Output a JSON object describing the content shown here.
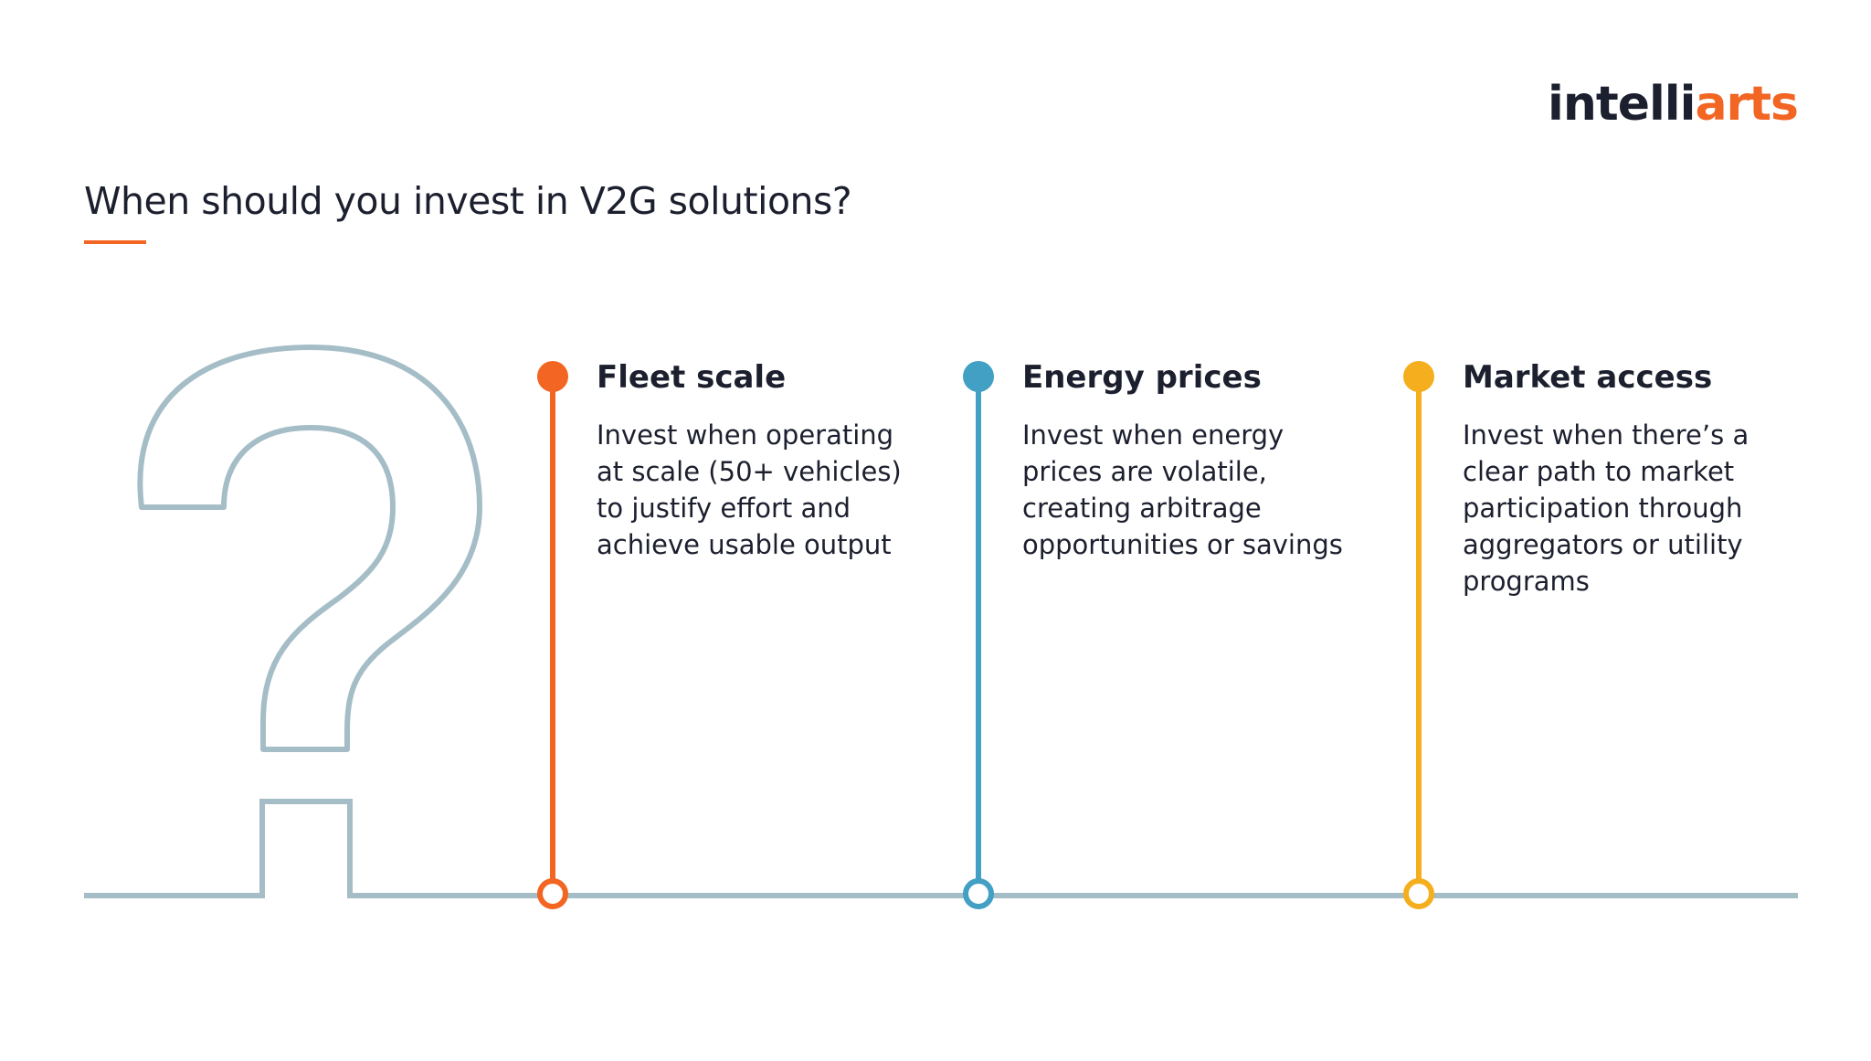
{
  "logo": {
    "part1": "intelli",
    "part2": "arts"
  },
  "title": "When should you invest in V2G solutions?",
  "colors": {
    "accent": "#f26522",
    "blue": "#42a0c4",
    "yellow": "#f5ae1e",
    "baseline": "#a5bdc6",
    "text": "#1c1f2e"
  },
  "items": [
    {
      "heading": "Fleet scale",
      "lines": [
        "Invest when operating",
        "at scale (50+ vehicles)",
        "to justify effort and",
        "achieve usable output"
      ],
      "color": "#f26522"
    },
    {
      "heading": "Energy prices",
      "lines": [
        "Invest when energy",
        "prices are volatile,",
        "creating arbitrage",
        "opportunities or savings"
      ],
      "color": "#42a0c4"
    },
    {
      "heading": "Market access",
      "lines": [
        "Invest when there’s a",
        "clear path to market",
        "participation through",
        "aggregators or utility",
        "programs"
      ],
      "color": "#f5ae1e"
    }
  ]
}
